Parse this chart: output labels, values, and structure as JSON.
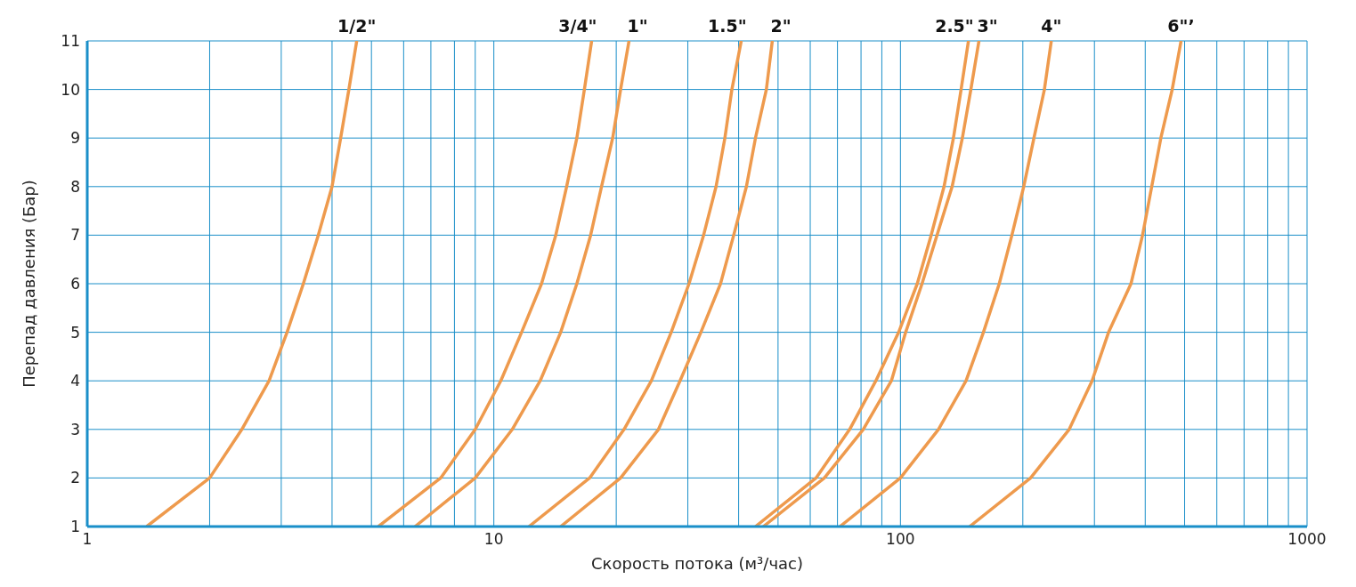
{
  "chart_data": {
    "type": "line",
    "xlabel": "Скорость потока (м³/час)",
    "ylabel": "Перепад давления (Бар)",
    "log": "x",
    "grid": true,
    "marker": "none",
    "line_style": "solid",
    "xlim": [
      1,
      1000
    ],
    "xticks": [
      1,
      {
        "value": 2,
        "label": null
      },
      {
        "value": 3,
        "label": null
      },
      {
        "value": 4,
        "label": null
      },
      {
        "value": 5,
        "label": null
      },
      {
        "value": 6,
        "label": null
      },
      {
        "value": 7,
        "label": null
      },
      {
        "value": 8,
        "label": null
      },
      {
        "value": 9,
        "label": null
      },
      10,
      {
        "value": 20,
        "label": null
      },
      {
        "value": 30,
        "label": null
      },
      {
        "value": 40,
        "label": null
      },
      {
        "value": 50,
        "label": null
      },
      {
        "value": 60,
        "label": null
      },
      {
        "value": 70,
        "label": null
      },
      {
        "value": 80,
        "label": null
      },
      {
        "value": 90,
        "label": null
      },
      100,
      {
        "value": 200,
        "label": null
      },
      {
        "value": 300,
        "label": null
      },
      {
        "value": 400,
        "label": null
      },
      {
        "value": 500,
        "label": null
      },
      {
        "value": 600,
        "label": null
      },
      {
        "value": 700,
        "label": null
      },
      {
        "value": 800,
        "label": null
      },
      {
        "value": 900,
        "label": null
      },
      1000
    ],
    "ylim": [
      1,
      11
    ],
    "yticks": [
      1,
      2,
      3,
      4,
      5,
      6,
      7,
      8,
      9,
      10,
      11
    ],
    "series": [
      {
        "name": "1/2\"",
        "color": "#ee9a4d",
        "x": [
          1.4,
          2.0,
          2.4,
          2.8,
          3.1,
          3.4,
          3.7,
          4.0,
          4.2,
          4.4,
          4.6
        ],
        "values": [
          1,
          2,
          3,
          4,
          5,
          6,
          7,
          8,
          9,
          10,
          11
        ]
      },
      {
        "name": "3/4\"",
        "color": "#ee9a4d",
        "x": [
          5.2,
          7.4,
          9.0,
          10.4,
          11.7,
          13.1,
          14.2,
          15.1,
          16.0,
          16.7,
          17.4
        ],
        "values": [
          1,
          2,
          3,
          4,
          5,
          6,
          7,
          8,
          9,
          10,
          11
        ]
      },
      {
        "name": "1\"",
        "color": "#ee9a4d",
        "x": [
          6.4,
          9.0,
          11.1,
          13.0,
          14.6,
          16.0,
          17.3,
          18.4,
          19.6,
          20.5,
          21.5
        ],
        "values": [
          1,
          2,
          3,
          4,
          5,
          6,
          7,
          8,
          9,
          10,
          11
        ]
      },
      {
        "name": "1.5\"",
        "color": "#ee9a4d",
        "x": [
          12.2,
          17.2,
          20.9,
          24.4,
          27.3,
          30.2,
          32.8,
          35.2,
          37.0,
          38.5,
          40.6
        ],
        "values": [
          1,
          2,
          3,
          4,
          5,
          6,
          7,
          8,
          9,
          10,
          11
        ]
      },
      {
        "name": "2\"",
        "color": "#ee9a4d",
        "x": [
          14.6,
          20.5,
          25.4,
          28.7,
          32.3,
          36.1,
          38.9,
          41.8,
          44.0,
          46.8,
          48.4
        ],
        "values": [
          1,
          2,
          3,
          4,
          5,
          6,
          7,
          8,
          9,
          10,
          11
        ]
      },
      {
        "name": "2.5\"",
        "color": "#ee9a4d",
        "x": [
          44,
          62,
          75,
          87,
          99,
          110,
          119,
          128,
          135,
          141,
          147
        ],
        "values": [
          1,
          2,
          3,
          4,
          5,
          6,
          7,
          8,
          9,
          10,
          11
        ]
      },
      {
        "name": "3\"",
        "color": "#ee9a4d",
        "x": [
          46,
          65,
          81,
          95,
          103,
          113,
          123,
          134,
          142,
          149,
          156
        ],
        "values": [
          1,
          2,
          3,
          4,
          5,
          6,
          7,
          8,
          9,
          10,
          11
        ]
      },
      {
        "name": "4\"",
        "color": "#ee9a4d",
        "x": [
          71,
          100,
          124,
          145,
          160,
          175,
          188,
          201,
          213,
          226,
          235
        ],
        "values": [
          1,
          2,
          3,
          4,
          5,
          6,
          7,
          8,
          9,
          10,
          11
        ]
      },
      {
        "name": "6\"’",
        "color": "#ee9a4d",
        "x": [
          148,
          209,
          260,
          296,
          325,
          369,
          394,
          415,
          437,
          466,
          490
        ],
        "values": [
          1,
          2,
          3,
          4,
          5,
          6,
          7,
          8,
          9,
          10,
          11
        ]
      }
    ]
  }
}
